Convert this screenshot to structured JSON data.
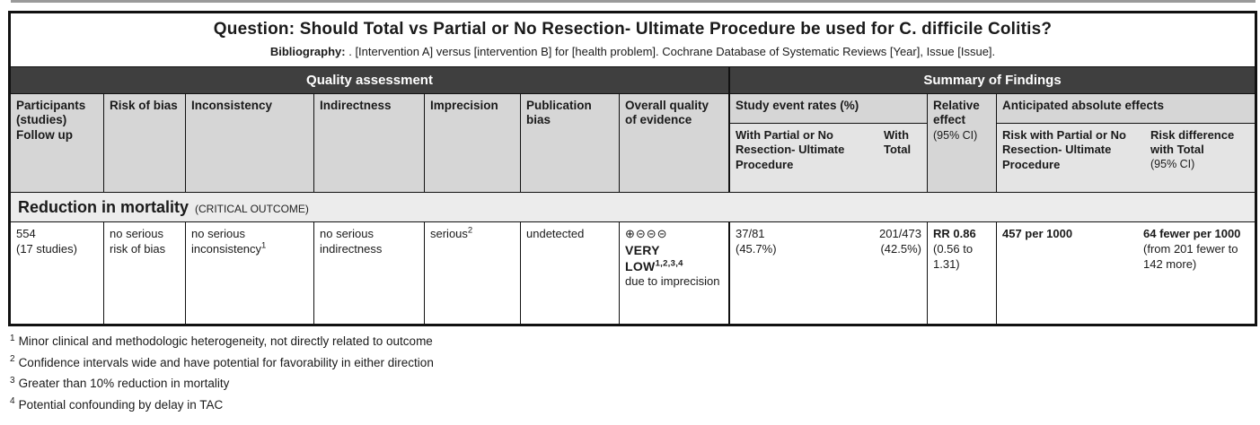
{
  "header": {
    "question": "Question: Should Total vs Partial or No Resection- Ultimate Procedure be used for C. difficile Colitis?",
    "bibliography_label": "Bibliography:",
    "bibliography": " . [Intervention A] versus [intervention B] for [health problem]. Cochrane Database of Systematic Reviews [Year], Issue [Issue]."
  },
  "group_headers": {
    "quality_assessment": "Quality assessment",
    "summary_of_findings": "Summary of Findings"
  },
  "quality_columns": {
    "participants": "Participants (studies) Follow up",
    "risk_of_bias": "Risk of bias",
    "inconsistency": "Inconsistency",
    "indirectness": "Indirectness",
    "imprecision": "Imprecision",
    "publication_bias": "Publication bias",
    "overall_quality": "Overall quality of evidence"
  },
  "summary_columns": {
    "study_event_rates": "Study event rates (%)",
    "with_control": "With Partial or No Resection- Ultimate Procedure",
    "with_total": "With Total",
    "relative_effect": "Relative effect",
    "relative_effect_ci": "(95% CI)",
    "anticipated_effects": "Anticipated absolute effects",
    "risk_with_control": "Risk with Partial or No Resection- Ultimate Procedure",
    "risk_difference": "Risk difference with Total",
    "risk_difference_ci": "(95% CI)"
  },
  "section": {
    "title": "Reduction in mortality",
    "tag": "(CRITICAL OUTCOME)"
  },
  "row": {
    "participants": "554",
    "studies": "(17 studies)",
    "risk_of_bias": "no serious risk of bias",
    "inconsistency": "no serious inconsistency",
    "inconsistency_sup": "1",
    "indirectness": "no serious indirectness",
    "imprecision": "serious",
    "imprecision_sup": "2",
    "publication_bias": "undetected",
    "quality_symbols": "⊕⊝⊝⊝",
    "quality_line1": "VERY",
    "quality_line2": "LOW",
    "quality_sup": "1,2,3,4",
    "quality_reason": "due to imprecision",
    "event_rate_control": "37/81",
    "event_rate_control_pct": "(45.7%)",
    "event_rate_total": "201/473",
    "event_rate_total_pct": "(42.5%)",
    "relative_effect": "RR 0.86",
    "relative_effect_ci": "(0.56 to 1.31)",
    "risk_with_control": "457 per 1000",
    "risk_difference": "64 fewer per 1000",
    "risk_difference_ci": "(from 201 fewer to 142 more)"
  },
  "footnotes": [
    {
      "num": "1",
      "text": "Minor clinical and methodologic heterogeneity, not directly related to outcome"
    },
    {
      "num": "2",
      "text": "Confidence intervals wide and have potential for favorability in either direction"
    },
    {
      "num": "3",
      "text": "Greater than 10% reduction in mortality"
    },
    {
      "num": "4",
      "text": "Potential confounding by delay in TAC"
    }
  ],
  "colors": {
    "group_band": "#3f3f3f",
    "column_header": "#d6d6d6",
    "sub_header": "#e4e4e4",
    "section_band": "#ececec",
    "border": "#111111",
    "background": "#ffffff"
  }
}
